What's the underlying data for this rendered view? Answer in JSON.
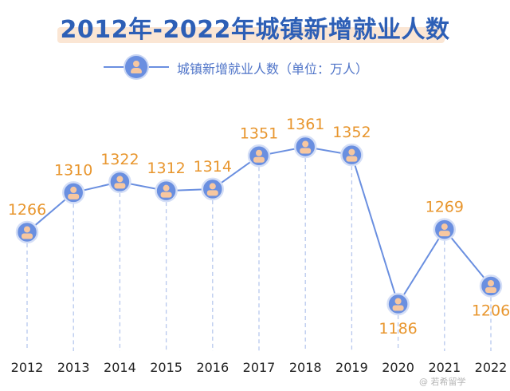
{
  "header": {
    "title": "2012年-2022年城镇新增就业人数"
  },
  "legend": {
    "label": "城镇新增就业人数（单位：万人）"
  },
  "watermark": "@ 若希留学",
  "colors": {
    "line": "#6a8fe0",
    "marker": "#6a8fe0",
    "marker_icon": "#f7c7a0",
    "value_label": "#e8962e",
    "title": "#2d5fb6",
    "dashed": "#b7c8ee"
  },
  "chart_data": {
    "type": "line",
    "title": "2012年-2022年城镇新增就业人数",
    "xlabel": "",
    "ylabel": "",
    "categories": [
      "2012",
      "2013",
      "2014",
      "2015",
      "2016",
      "2017",
      "2018",
      "2019",
      "2020",
      "2021",
      "2022"
    ],
    "series": [
      {
        "name": "城镇新增就业人数（单位：万人）",
        "values": [
          1266,
          1310,
          1322,
          1312,
          1314,
          1351,
          1361,
          1352,
          1186,
          1269,
          1206
        ]
      }
    ],
    "ylim": [
      1150,
      1400
    ],
    "grid": false,
    "legend_position": "top-center"
  }
}
